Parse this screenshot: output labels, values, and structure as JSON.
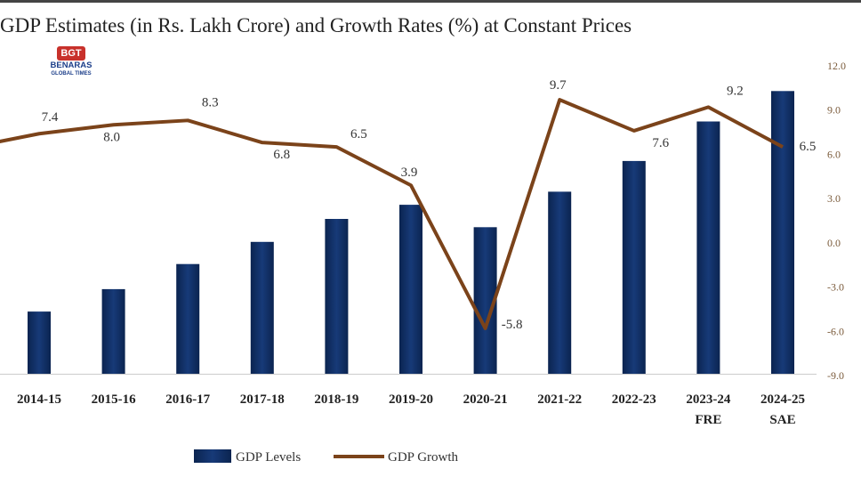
{
  "header": {
    "title": "GDP Estimates (in Rs. Lakh Crore) and Growth Rates (%) at Constant Prices",
    "logo": {
      "mark": "BGT",
      "name": "BENARAS",
      "sub": "GLOBAL TIMES"
    }
  },
  "chart_data": {
    "type": "bar+line",
    "title": "GDP Estimates (in Rs. Lakh Crore) and Growth Rates (%) at Constant Prices",
    "categories": [
      "2014-15",
      "2015-16",
      "2016-17",
      "2017-18",
      "2018-19",
      "2019-20",
      "2020-21",
      "2021-22",
      "2022-23",
      "2023-24",
      "2024-25"
    ],
    "category_sublabels": [
      "",
      "",
      "",
      "",
      "",
      "",
      "",
      "",
      "",
      "FRE",
      "SAE"
    ],
    "series": [
      {
        "name": "GDP Levels",
        "type": "bar",
        "axis": "left",
        "color": "#12306a",
        "values": [
          105.3,
          113.7,
          123.1,
          131.4,
          140.0,
          145.3,
          136.9,
          150.2,
          161.7,
          176.5,
          187.9
        ]
      },
      {
        "name": "GDP Growth",
        "type": "line",
        "axis": "right",
        "color": "#7b431a",
        "leading_value": 6.4,
        "values": [
          7.4,
          8.0,
          8.3,
          6.8,
          6.5,
          3.9,
          -5.8,
          9.7,
          7.6,
          9.2,
          6.5
        ],
        "labels": [
          "7.4",
          "8.0",
          "8.3",
          "6.8",
          "6.5",
          "3.9",
          "-5.8",
          "9.7",
          "7.6",
          "9.2",
          "6.5"
        ]
      }
    ],
    "y_right": {
      "ylim": [
        -9.0,
        12.0
      ],
      "ticks": [
        "12.0",
        "9.0",
        "6.0",
        "3.0",
        "0.0",
        "-3.0",
        "-6.0",
        "-9.0"
      ]
    },
    "legend": "bottom",
    "grid": false
  }
}
